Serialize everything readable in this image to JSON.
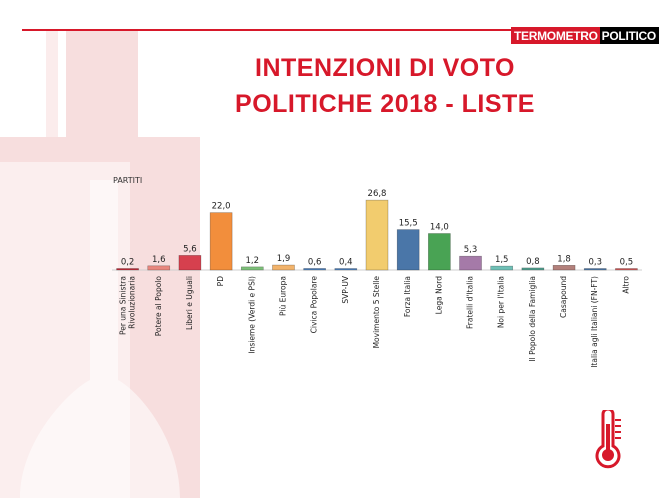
{
  "brand": {
    "part1": "TERMOMETRO",
    "part2": "POLITICO"
  },
  "title": {
    "line1": "INTENZIONI DI VOTO",
    "line2": "POLITICHE 2018 - LISTE"
  },
  "colors": {
    "accent": "#d7182a",
    "background_watermark": "#f6d9da"
  },
  "icons": {
    "watermark": "thermometer-watermark-icon",
    "corner": "thermometer-icon"
  },
  "chart_data": {
    "type": "bar",
    "ylabel": "PARTITI",
    "categories": [
      "Per una Sinistra Rivoluzionaria",
      "Potere al Popolo",
      "Liberi e Uguali",
      "PD",
      "Insieme (Verdi e PSI)",
      "Più Europa",
      "Civica Popolare",
      "SVP-UV",
      "Movimento 5 Stelle",
      "Forza Italia",
      "Lega Nord",
      "Fratelli d'Italia",
      "Noi per l'Italia",
      "Il Popolo della Famiglia",
      "Casapound",
      "Italia agli Italiani (FN-FT)",
      "Altro"
    ],
    "value_labels": [
      "0,2",
      "1,6",
      "5,6",
      "22,0",
      "1,2",
      "1,9",
      "0,6",
      "0,4",
      "26,8",
      "15,5",
      "14,0",
      "5,3",
      "1,5",
      "0,8",
      "1,8",
      "0,3",
      "0,5"
    ],
    "values": [
      0.2,
      1.6,
      5.6,
      22.0,
      1.2,
      1.9,
      0.6,
      0.4,
      26.8,
      15.5,
      14.0,
      5.3,
      1.5,
      0.8,
      1.8,
      0.3,
      0.5
    ],
    "colors": [
      "#c22c3a",
      "#e8877e",
      "#d6404e",
      "#f28e3c",
      "#7dc07a",
      "#f2b36b",
      "#4f81bd",
      "#4f81bd",
      "#f2cc6e",
      "#4a76a8",
      "#49a354",
      "#a57aa8",
      "#6fc0b6",
      "#53a08f",
      "#b3807b",
      "#4e79a7",
      "#d05a5a"
    ],
    "ylim": [
      0,
      28
    ],
    "grid": false,
    "legend": "none"
  }
}
